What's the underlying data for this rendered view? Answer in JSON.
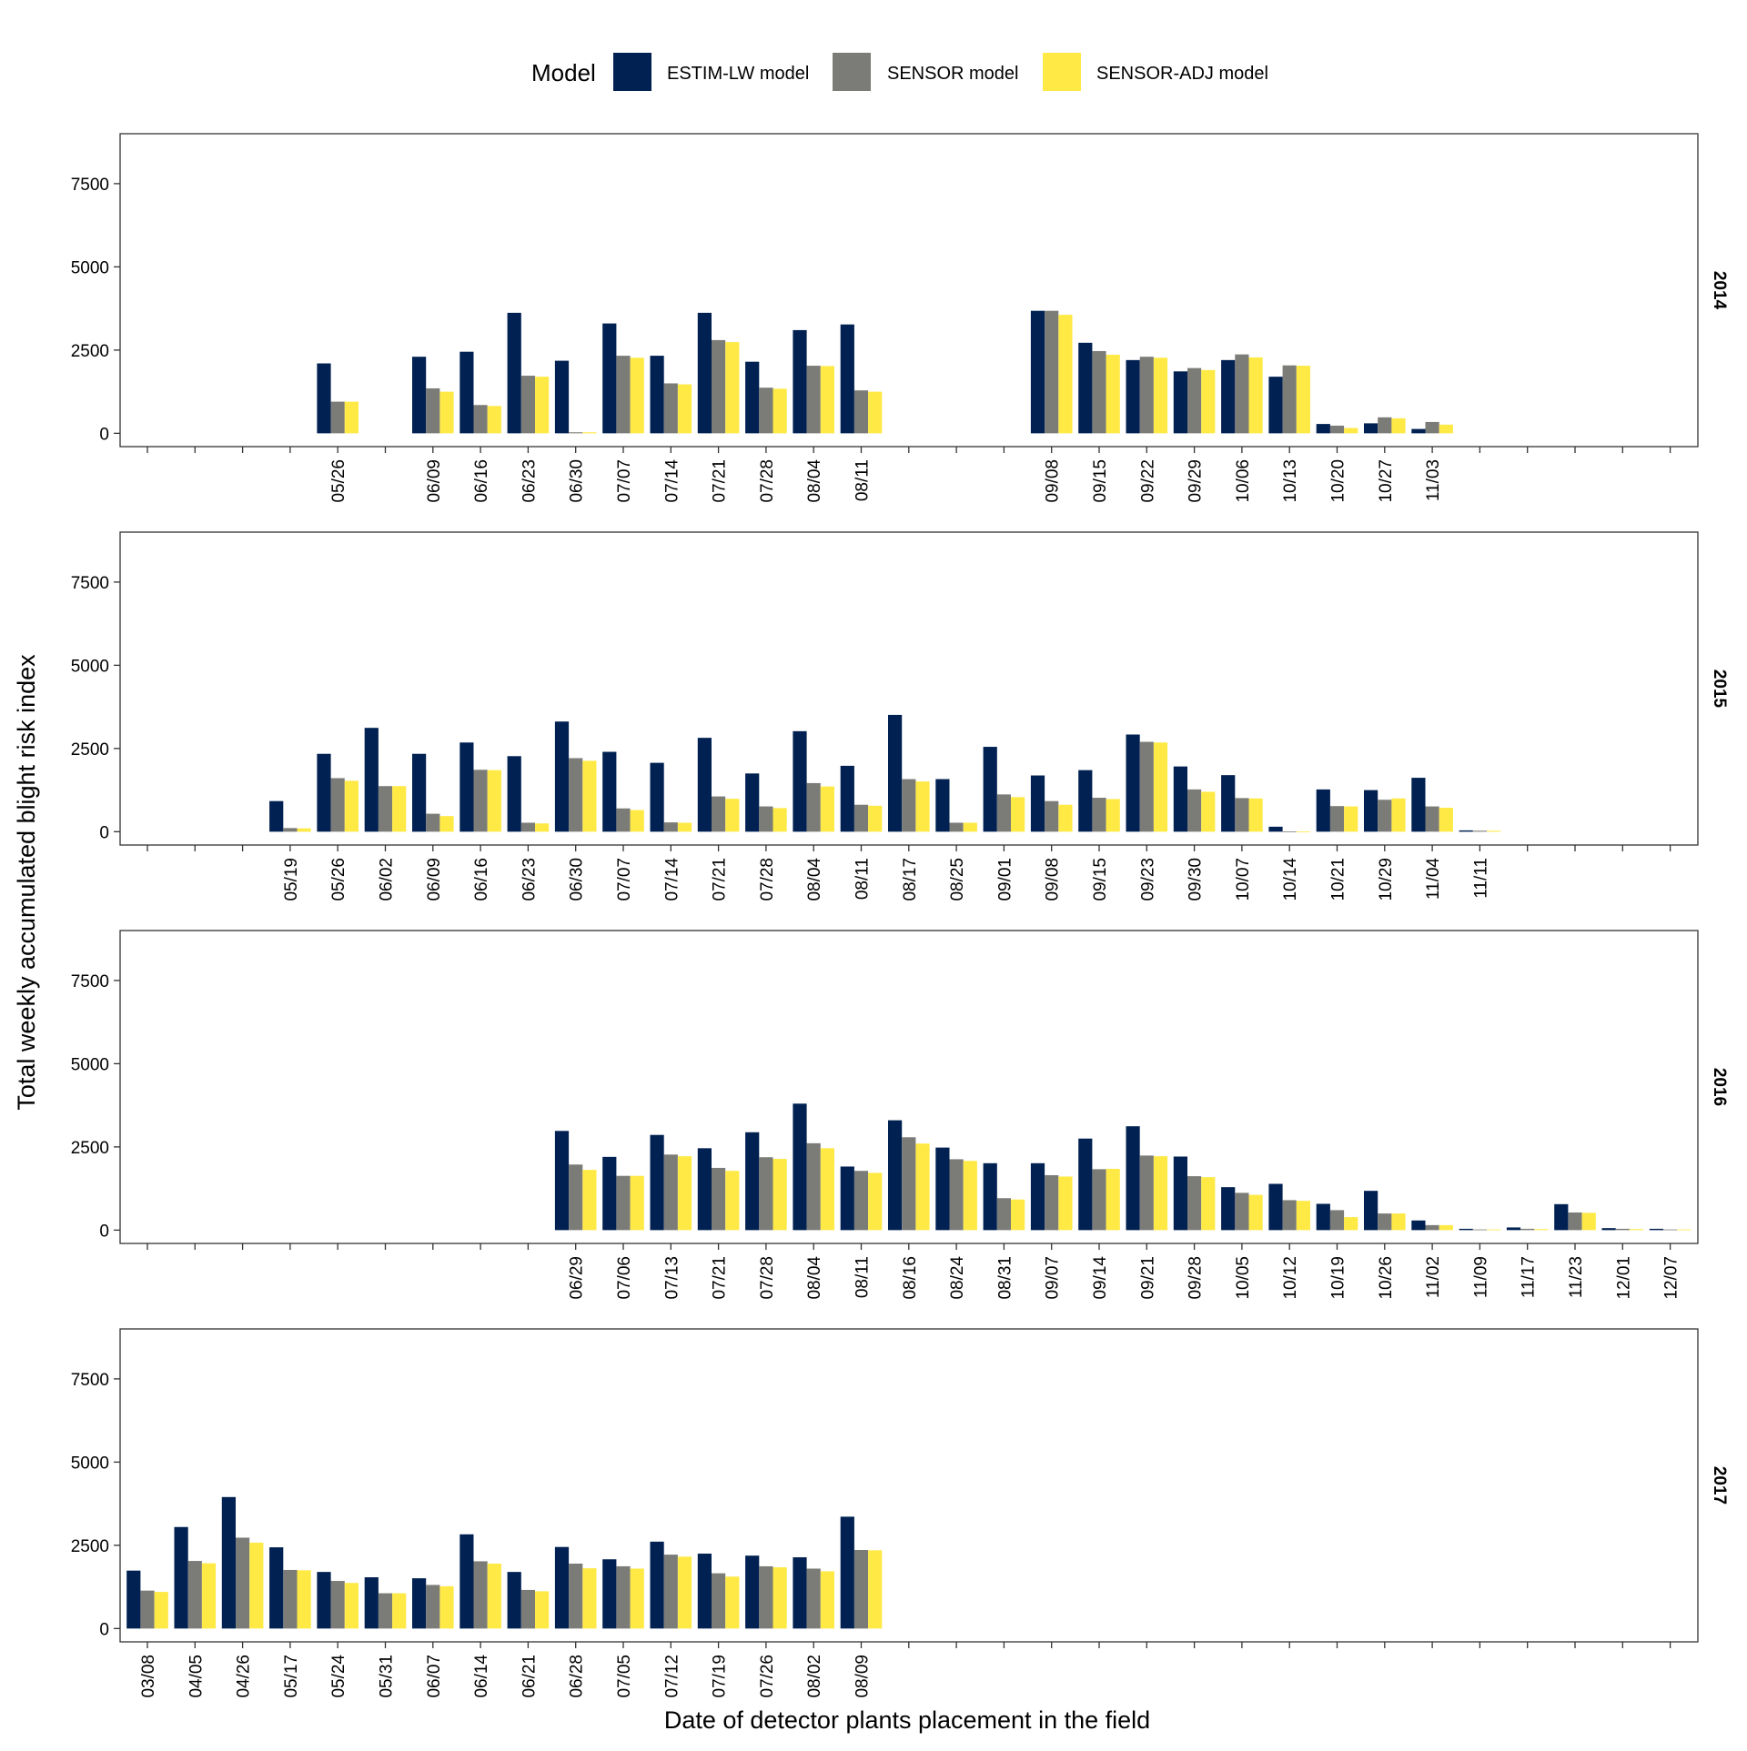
{
  "legend": {
    "title": "Model",
    "items": [
      {
        "label": "ESTIM-LW model",
        "color": "#002151"
      },
      {
        "label": "SENSOR model",
        "color": "#7B7B78"
      },
      {
        "label": "SENSOR-ADJ model",
        "color": "#FFE945"
      }
    ]
  },
  "axes": {
    "ylabel": "Total weekly accumulated blight risk index",
    "xlabel": "Date of detector plants placement in the field",
    "y_ticks": [
      0,
      2500,
      5000,
      7500
    ],
    "ylim": [
      -400,
      9000
    ]
  },
  "chart_data": {
    "type": "bar",
    "layout": "faceted-rows",
    "series_names": [
      "ESTIM-LW model",
      "SENSOR model",
      "SENSOR-ADJ model"
    ],
    "slots_per_panel": 33,
    "panels": [
      {
        "year": "2014",
        "bars": [
          {
            "date": "05/26",
            "slot": 4,
            "values": [
              2100,
              950,
              950
            ]
          },
          {
            "date": "06/09",
            "slot": 6,
            "values": [
              2300,
              1350,
              1250
            ]
          },
          {
            "date": "06/16",
            "slot": 7,
            "values": [
              2450,
              850,
              820
            ]
          },
          {
            "date": "06/23",
            "slot": 8,
            "values": [
              3620,
              1730,
              1700
            ]
          },
          {
            "date": "06/30",
            "slot": 9,
            "values": [
              2180,
              30,
              30
            ]
          },
          {
            "date": "07/07",
            "slot": 10,
            "values": [
              3300,
              2330,
              2270
            ]
          },
          {
            "date": "07/14",
            "slot": 11,
            "values": [
              2330,
              1500,
              1470
            ]
          },
          {
            "date": "07/21",
            "slot": 12,
            "values": [
              3620,
              2800,
              2740
            ]
          },
          {
            "date": "07/28",
            "slot": 13,
            "values": [
              2150,
              1370,
              1340
            ]
          },
          {
            "date": "08/04",
            "slot": 14,
            "values": [
              3100,
              2030,
              2020
            ]
          },
          {
            "date": "08/11",
            "slot": 15,
            "values": [
              3270,
              1290,
              1250
            ]
          },
          {
            "date": "09/08",
            "slot": 19,
            "values": [
              3680,
              3680,
              3560
            ]
          },
          {
            "date": "09/15",
            "slot": 20,
            "values": [
              2720,
              2470,
              2360
            ]
          },
          {
            "date": "09/22",
            "slot": 21,
            "values": [
              2200,
              2300,
              2270
            ]
          },
          {
            "date": "09/29",
            "slot": 22,
            "values": [
              1860,
              1960,
              1900
            ]
          },
          {
            "date": "10/06",
            "slot": 23,
            "values": [
              2200,
              2370,
              2280
            ]
          },
          {
            "date": "10/13",
            "slot": 24,
            "values": [
              1700,
              2040,
              2030
            ]
          },
          {
            "date": "10/20",
            "slot": 25,
            "values": [
              280,
              230,
              160
            ]
          },
          {
            "date": "10/27",
            "slot": 26,
            "values": [
              300,
              480,
              450
            ]
          },
          {
            "date": "11/03",
            "slot": 27,
            "values": [
              130,
              340,
              260
            ]
          }
        ]
      },
      {
        "year": "2015",
        "bars": [
          {
            "date": "05/19",
            "slot": 3,
            "values": [
              920,
              110,
              100
            ]
          },
          {
            "date": "05/26",
            "slot": 4,
            "values": [
              2340,
              1610,
              1530
            ]
          },
          {
            "date": "06/02",
            "slot": 5,
            "values": [
              3120,
              1370,
              1370
            ]
          },
          {
            "date": "06/09",
            "slot": 6,
            "values": [
              2340,
              540,
              470
            ]
          },
          {
            "date": "06/16",
            "slot": 7,
            "values": [
              2680,
              1860,
              1850
            ]
          },
          {
            "date": "06/23",
            "slot": 8,
            "values": [
              2270,
              270,
              250
            ]
          },
          {
            "date": "06/30",
            "slot": 9,
            "values": [
              3310,
              2210,
              2130
            ]
          },
          {
            "date": "07/07",
            "slot": 10,
            "values": [
              2400,
              700,
              650
            ]
          },
          {
            "date": "07/14",
            "slot": 11,
            "values": [
              2070,
              280,
              270
            ]
          },
          {
            "date": "07/21",
            "slot": 12,
            "values": [
              2820,
              1060,
              990
            ]
          },
          {
            "date": "07/28",
            "slot": 13,
            "values": [
              1750,
              760,
              710
            ]
          },
          {
            "date": "08/04",
            "slot": 14,
            "values": [
              3020,
              1460,
              1360
            ]
          },
          {
            "date": "08/11",
            "slot": 15,
            "values": [
              1980,
              810,
              780
            ]
          },
          {
            "date": "08/17",
            "slot": 16,
            "values": [
              3510,
              1580,
              1510
            ]
          },
          {
            "date": "08/25",
            "slot": 17,
            "values": [
              1580,
              270,
              270
            ]
          },
          {
            "date": "09/01",
            "slot": 18,
            "values": [
              2550,
              1120,
              1040
            ]
          },
          {
            "date": "09/08",
            "slot": 19,
            "values": [
              1690,
              920,
              810
            ]
          },
          {
            "date": "09/15",
            "slot": 20,
            "values": [
              1850,
              1020,
              980
            ]
          },
          {
            "date": "09/23",
            "slot": 21,
            "values": [
              2920,
              2700,
              2680
            ]
          },
          {
            "date": "09/30",
            "slot": 22,
            "values": [
              1960,
              1270,
              1200
            ]
          },
          {
            "date": "10/07",
            "slot": 23,
            "values": [
              1700,
              1010,
              1000
            ]
          },
          {
            "date": "10/14",
            "slot": 24,
            "values": [
              150,
              10,
              10
            ]
          },
          {
            "date": "10/21",
            "slot": 25,
            "values": [
              1270,
              770,
              760
            ]
          },
          {
            "date": "10/29",
            "slot": 26,
            "values": [
              1250,
              960,
              1000
            ]
          },
          {
            "date": "11/04",
            "slot": 27,
            "values": [
              1620,
              760,
              720
            ]
          },
          {
            "date": "11/11",
            "slot": 28,
            "values": [
              40,
              30,
              30
            ]
          }
        ]
      },
      {
        "year": "2016",
        "bars": [
          {
            "date": "06/29",
            "slot": 9,
            "values": [
              2980,
              1970,
              1810
            ]
          },
          {
            "date": "07/06",
            "slot": 10,
            "values": [
              2200,
              1630,
              1630
            ]
          },
          {
            "date": "07/13",
            "slot": 11,
            "values": [
              2860,
              2270,
              2220
            ]
          },
          {
            "date": "07/21",
            "slot": 12,
            "values": [
              2460,
              1870,
              1780
            ]
          },
          {
            "date": "07/28",
            "slot": 13,
            "values": [
              2940,
              2190,
              2140
            ]
          },
          {
            "date": "08/04",
            "slot": 14,
            "values": [
              3800,
              2610,
              2460
            ]
          },
          {
            "date": "08/11",
            "slot": 15,
            "values": [
              1910,
              1780,
              1720
            ]
          },
          {
            "date": "08/16",
            "slot": 16,
            "values": [
              3300,
              2790,
              2600
            ]
          },
          {
            "date": "08/24",
            "slot": 17,
            "values": [
              2480,
              2130,
              2080
            ]
          },
          {
            "date": "08/31",
            "slot": 18,
            "values": [
              2010,
              960,
              920
            ]
          },
          {
            "date": "09/07",
            "slot": 19,
            "values": [
              2010,
              1650,
              1610
            ]
          },
          {
            "date": "09/14",
            "slot": 20,
            "values": [
              2750,
              1830,
              1840
            ]
          },
          {
            "date": "09/21",
            "slot": 21,
            "values": [
              3120,
              2240,
              2220
            ]
          },
          {
            "date": "09/28",
            "slot": 22,
            "values": [
              2210,
              1620,
              1590
            ]
          },
          {
            "date": "10/05",
            "slot": 23,
            "values": [
              1290,
              1120,
              1060
            ]
          },
          {
            "date": "10/12",
            "slot": 24,
            "values": [
              1390,
              900,
              880
            ]
          },
          {
            "date": "10/19",
            "slot": 25,
            "values": [
              790,
              600,
              390
            ]
          },
          {
            "date": "10/26",
            "slot": 26,
            "values": [
              1180,
              500,
              500
            ]
          },
          {
            "date": "11/02",
            "slot": 27,
            "values": [
              290,
              150,
              150
            ]
          },
          {
            "date": "11/09",
            "slot": 28,
            "values": [
              40,
              20,
              20
            ]
          },
          {
            "date": "11/17",
            "slot": 29,
            "values": [
              80,
              40,
              30
            ]
          },
          {
            "date": "11/23",
            "slot": 30,
            "values": [
              780,
              530,
              520
            ]
          },
          {
            "date": "12/01",
            "slot": 31,
            "values": [
              60,
              40,
              30
            ]
          },
          {
            "date": "12/07",
            "slot": 32,
            "values": [
              40,
              20,
              20
            ]
          }
        ]
      },
      {
        "year": "2017",
        "bars": [
          {
            "date": "03/08",
            "slot": 0,
            "values": [
              1740,
              1140,
              1100
            ]
          },
          {
            "date": "04/05",
            "slot": 1,
            "values": [
              3050,
              2030,
              1960
            ]
          },
          {
            "date": "04/26",
            "slot": 2,
            "values": [
              3950,
              2730,
              2580
            ]
          },
          {
            "date": "05/17",
            "slot": 3,
            "values": [
              2440,
              1760,
              1750
            ]
          },
          {
            "date": "05/24",
            "slot": 4,
            "values": [
              1700,
              1430,
              1370
            ]
          },
          {
            "date": "05/31",
            "slot": 5,
            "values": [
              1540,
              1060,
              1060
            ]
          },
          {
            "date": "06/07",
            "slot": 6,
            "values": [
              1510,
              1310,
              1270
            ]
          },
          {
            "date": "06/14",
            "slot": 7,
            "values": [
              2830,
              2020,
              1950
            ]
          },
          {
            "date": "06/21",
            "slot": 8,
            "values": [
              1700,
              1160,
              1120
            ]
          },
          {
            "date": "06/28",
            "slot": 9,
            "values": [
              2450,
              1950,
              1810
            ]
          },
          {
            "date": "07/05",
            "slot": 10,
            "values": [
              2080,
              1870,
              1800
            ]
          },
          {
            "date": "07/12",
            "slot": 11,
            "values": [
              2610,
              2220,
              2160
            ]
          },
          {
            "date": "07/19",
            "slot": 12,
            "values": [
              2250,
              1660,
              1560
            ]
          },
          {
            "date": "07/26",
            "slot": 13,
            "values": [
              2190,
              1870,
              1840
            ]
          },
          {
            "date": "08/02",
            "slot": 14,
            "values": [
              2140,
              1800,
              1720
            ]
          },
          {
            "date": "08/09",
            "slot": 15,
            "values": [
              3360,
              2360,
              2350
            ]
          }
        ]
      }
    ]
  }
}
